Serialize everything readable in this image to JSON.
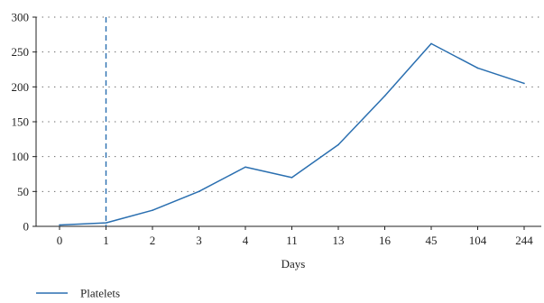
{
  "chart_data": {
    "type": "line",
    "title": "",
    "xlabel": "Days",
    "ylabel": "",
    "categories": [
      "0",
      "1",
      "2",
      "3",
      "4",
      "11",
      "13",
      "16",
      "45",
      "104",
      "244"
    ],
    "ylim": [
      0,
      300
    ],
    "yticks": [
      0,
      50,
      100,
      150,
      200,
      250,
      300
    ],
    "grid": {
      "horizontal": true,
      "style": "dotted"
    },
    "reference_line": {
      "x_category": "1",
      "style": "dashed",
      "color": "#2a6fb0"
    },
    "series": [
      {
        "name": "Platelets",
        "color": "#2a6fb0",
        "values": [
          2,
          5,
          23,
          50,
          85,
          70,
          117,
          187,
          262,
          227,
          205
        ]
      }
    ],
    "legend": {
      "placement": "bottom-left"
    }
  }
}
